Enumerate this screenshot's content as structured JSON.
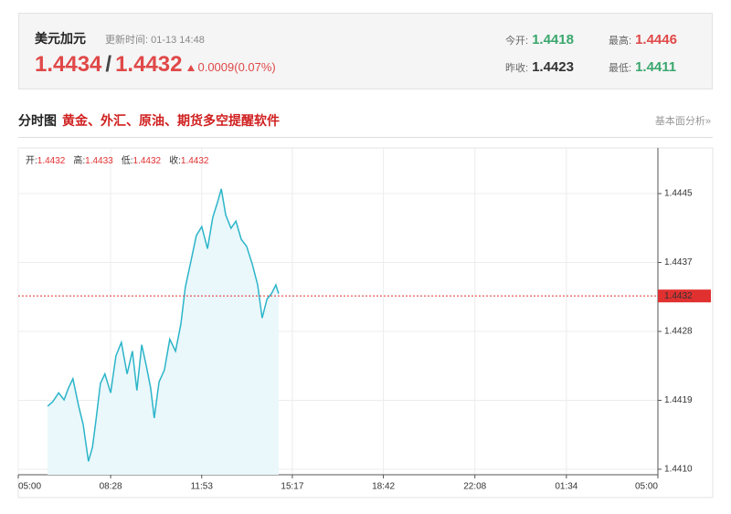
{
  "header": {
    "title": "美元加元",
    "update": "更新时间: 01-13 14:48",
    "bid": "1.4434",
    "separator": "/",
    "ask": "1.4432",
    "change": "0.0009(0.07%)",
    "stats": [
      {
        "label": "今开:",
        "value": "1.4418"
      },
      {
        "label": "最高:",
        "value": "1.4446"
      },
      {
        "label": "昨收:",
        "value": "1.4423"
      },
      {
        "label": "最低:",
        "value": "1.4411"
      }
    ]
  },
  "section": {
    "title": "分时图",
    "promo": "黄金、外汇、原油、期货多空提醒软件",
    "link": "基本面分析»"
  },
  "chart_data": {
    "type": "line",
    "info": [
      {
        "label": "开:",
        "value": "1.4432"
      },
      {
        "label": "高:",
        "value": "1.4433"
      },
      {
        "label": "低:",
        "value": "1.4432"
      },
      {
        "label": "收:",
        "value": "1.4432"
      }
    ],
    "x": [
      "06:06",
      "06:18",
      "06:31",
      "06:43",
      "06:53",
      "07:03",
      "07:16",
      "07:26",
      "07:38",
      "07:47",
      "07:55",
      "08:05",
      "08:15",
      "08:28",
      "08:40",
      "08:52",
      "09:05",
      "09:17",
      "09:27",
      "09:38",
      "09:48",
      "09:58",
      "10:06",
      "10:17",
      "10:29",
      "10:41",
      "10:54",
      "11:06",
      "11:16",
      "11:29",
      "11:41",
      "11:53",
      "12:06",
      "12:18",
      "12:28",
      "12:37",
      "12:47",
      "12:59",
      "13:10",
      "13:22",
      "13:34",
      "13:47",
      "13:59",
      "14:09",
      "14:20",
      "14:30",
      "14:40",
      "14:46"
    ],
    "series": [
      {
        "color": "#2bb5c9",
        "fill": "#eaf7fb",
        "values": [
          1.4418,
          1.44186,
          1.44197,
          1.44188,
          1.44203,
          1.44215,
          1.4418,
          1.44157,
          1.4411,
          1.44128,
          1.44163,
          1.44209,
          1.44221,
          1.44197,
          1.44244,
          1.44261,
          1.44221,
          1.4425,
          1.442,
          1.44258,
          1.44232,
          1.44203,
          1.44165,
          1.44211,
          1.44226,
          1.44265,
          1.4425,
          1.44284,
          1.44331,
          1.44365,
          1.44397,
          1.44408,
          1.4438,
          1.4442,
          1.44438,
          1.44456,
          1.44423,
          1.44406,
          1.44415,
          1.44392,
          1.44383,
          1.4436,
          1.44334,
          1.44292,
          1.44316,
          1.44323,
          1.44334,
          1.44323
        ]
      }
    ],
    "xlim": [
      "05:00",
      "05:00"
    ],
    "xticks": [
      "05:00",
      "08:28",
      "11:53",
      "15:17",
      "18:42",
      "22:08",
      "01:34",
      "05:00"
    ],
    "ylim": [
      1.44093,
      1.44508
    ],
    "yticks": [
      {
        "value": 1.441,
        "label": "1.4410"
      },
      {
        "value": 1.441875,
        "label": "1.4419"
      },
      {
        "value": 1.44275,
        "label": "1.4428"
      },
      {
        "value": 1.443625,
        "label": "1.4437"
      },
      {
        "value": 1.4445,
        "label": "1.4445"
      }
    ],
    "reference_line": {
      "value": 1.4432,
      "color": "#e03030"
    },
    "grid": true
  }
}
